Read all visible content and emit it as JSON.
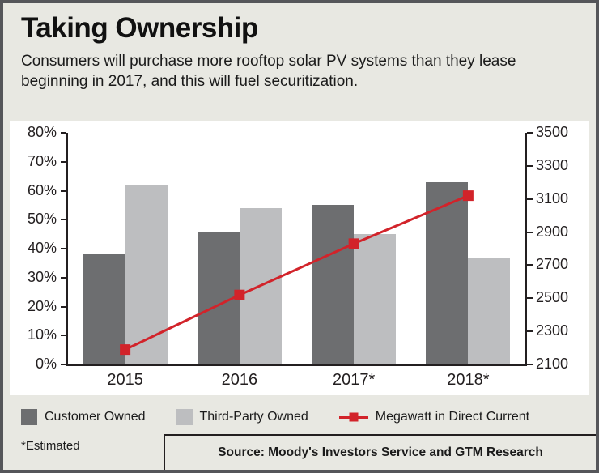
{
  "header": {
    "title": "Taking Ownership",
    "subtitle": "Consumers will purchase more rooftop solar PV systems than they lease beginning in 2017, and this will fuel securitization."
  },
  "chart_data": {
    "type": "bar",
    "subtype": "grouped-bars-with-line",
    "categories": [
      "2015",
      "2016",
      "2017*",
      "2018*"
    ],
    "series": [
      {
        "name": "Customer Owned",
        "type": "bar",
        "axis": "left",
        "color": "#6d6e70",
        "values": [
          38,
          46,
          55,
          63
        ]
      },
      {
        "name": "Third-Party Owned",
        "type": "bar",
        "axis": "left",
        "color": "#bdbec0",
        "values": [
          62,
          54,
          45,
          37
        ]
      },
      {
        "name": "Megawatt in Direct Current",
        "type": "line",
        "axis": "right",
        "color": "#d2232a",
        "values": [
          2190,
          2520,
          2830,
          3120
        ]
      }
    ],
    "left_axis": {
      "min": 0,
      "max": 80,
      "step": 10,
      "unit": "%",
      "ticks": [
        "80%",
        "70%",
        "60%",
        "50%",
        "40%",
        "30%",
        "20%",
        "10%",
        "0%"
      ]
    },
    "right_axis": {
      "min": 2100,
      "max": 3500,
      "step": 200,
      "ticks": [
        "3500",
        "3300",
        "3100",
        "2900",
        "2700",
        "2500",
        "2300",
        "2100"
      ]
    },
    "grid": false,
    "legend_position": "bottom",
    "title": "Taking Ownership"
  },
  "legend": {
    "items": [
      {
        "label": "Customer Owned",
        "swatch": "dark-gray-square",
        "color": "#6d6e70"
      },
      {
        "label": "Third-Party Owned",
        "swatch": "light-gray-square",
        "color": "#bdbec0"
      },
      {
        "label": "Megawatt in Direct Current",
        "swatch": "red-line-with-square-marker",
        "color": "#d2232a"
      }
    ]
  },
  "footer": {
    "estimated_note": "*Estimated",
    "source": "Source: Moody's Investors Service and GTM Research"
  },
  "colors": {
    "background": "#e8e8e2",
    "frame_border": "#55565a",
    "plot_background": "#ffffff",
    "axis": "#231f20",
    "text": "#1b1b1b",
    "accent_red": "#d2232a",
    "bar_dark": "#6d6e70",
    "bar_light": "#bdbec0"
  }
}
